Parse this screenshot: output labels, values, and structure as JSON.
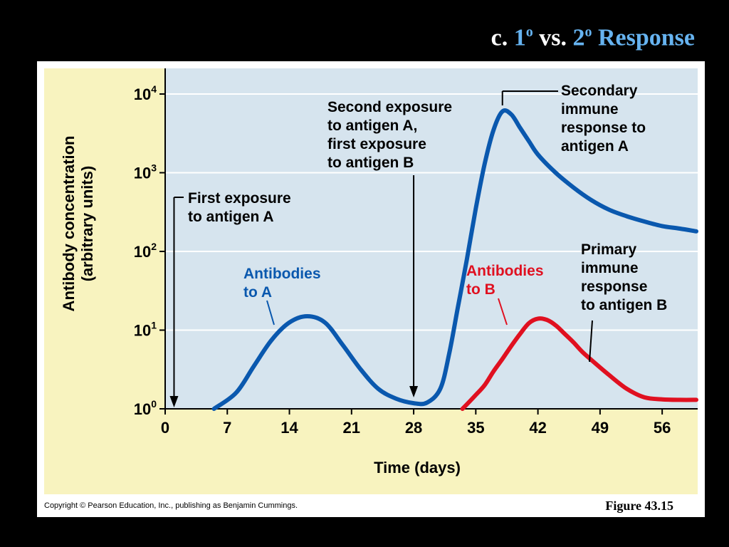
{
  "slide": {
    "title_prefix": "c.",
    "title_n1": "1",
    "title_sup1": "o",
    "title_vs": "vs.",
    "title_n2": "2",
    "title_sup2": "o",
    "title_word": "Response",
    "copyright": "Copyright © Pearson Education, Inc., publishing as Benjamin Cummings.",
    "figure_label": "Figure 43.15"
  },
  "colors": {
    "slide_bg": "#000000",
    "title_highlight": "#66b3f0",
    "panel_bg": "#ffffff",
    "frame_bg": "#f8f3bf",
    "plot_bg": "#d6e4ee",
    "grid": "#ffffff",
    "series_a": "#0a58ae",
    "series_b": "#e01020",
    "text": "#000000"
  },
  "chart_data": {
    "type": "line",
    "title": "",
    "xlabel": "Time (days)",
    "ylabel_line1": "Antibody concentration",
    "ylabel_line2": "(arbitrary units)",
    "x_range": [
      0,
      60
    ],
    "x_ticks": [
      0,
      7,
      14,
      21,
      28,
      35,
      42,
      49,
      56
    ],
    "x_tick_labels": [
      "0",
      "7",
      "14",
      "21",
      "28",
      "35",
      "42",
      "49",
      "56"
    ],
    "y_scale": "log",
    "y_range": [
      1,
      10000
    ],
    "y_ticks": [
      {
        "value": 1,
        "base": "10",
        "exp": "0"
      },
      {
        "value": 10,
        "base": "10",
        "exp": "1"
      },
      {
        "value": 100,
        "base": "10",
        "exp": "2"
      },
      {
        "value": 1000,
        "base": "10",
        "exp": "3"
      },
      {
        "value": 10000,
        "base": "10",
        "exp": "4"
      }
    ],
    "grid": true,
    "series": [
      {
        "name": "Antibodies to A",
        "color": "#0a58ae",
        "x": [
          5.5,
          8,
          10,
          12,
          14,
          16,
          18,
          20,
          22,
          24,
          26,
          28,
          29.5,
          31,
          32,
          33,
          34,
          35,
          36,
          37,
          38,
          39,
          40,
          41,
          42,
          44,
          46,
          48,
          50,
          52,
          54,
          56,
          58,
          60.5
        ],
        "y": [
          1,
          1.6,
          3.5,
          7.5,
          12.5,
          15,
          12.5,
          6.5,
          3.2,
          1.8,
          1.35,
          1.18,
          1.2,
          1.8,
          5,
          20,
          80,
          350,
          1300,
          3500,
          6000,
          5500,
          3700,
          2500,
          1700,
          1000,
          650,
          450,
          340,
          280,
          240,
          210,
          195,
          180
        ]
      },
      {
        "name": "Antibodies to B",
        "color": "#e01020",
        "x": [
          33.5,
          35,
          36,
          37,
          38,
          39,
          40,
          41,
          42,
          43,
          44,
          45,
          46,
          47,
          48,
          50,
          52,
          54,
          56,
          58,
          60.5
        ],
        "y": [
          1,
          1.5,
          2,
          3,
          4.3,
          6.3,
          9,
          12.3,
          14,
          13.5,
          11.5,
          9,
          7,
          5.3,
          4.2,
          2.7,
          1.8,
          1.4,
          1.32,
          1.3,
          1.3
        ]
      }
    ],
    "annotations": [
      {
        "id": "first-exposure-a",
        "lines": [
          "First exposure",
          "to antigen A"
        ]
      },
      {
        "id": "second-exposure",
        "lines": [
          "Second exposure",
          "to antigen A,",
          "first exposure",
          "to antigen B"
        ]
      },
      {
        "id": "secondary-response-a",
        "lines": [
          "Secondary",
          "immune",
          "response to",
          "antigen A"
        ]
      },
      {
        "id": "primary-response-b",
        "lines": [
          "Primary",
          "immune",
          "response",
          "to antigen B"
        ]
      },
      {
        "id": "antibodies-to-a",
        "lines": [
          "Antibodies",
          "to A"
        ]
      },
      {
        "id": "antibodies-to-b",
        "lines": [
          "Antibodies",
          "to B"
        ]
      }
    ]
  }
}
